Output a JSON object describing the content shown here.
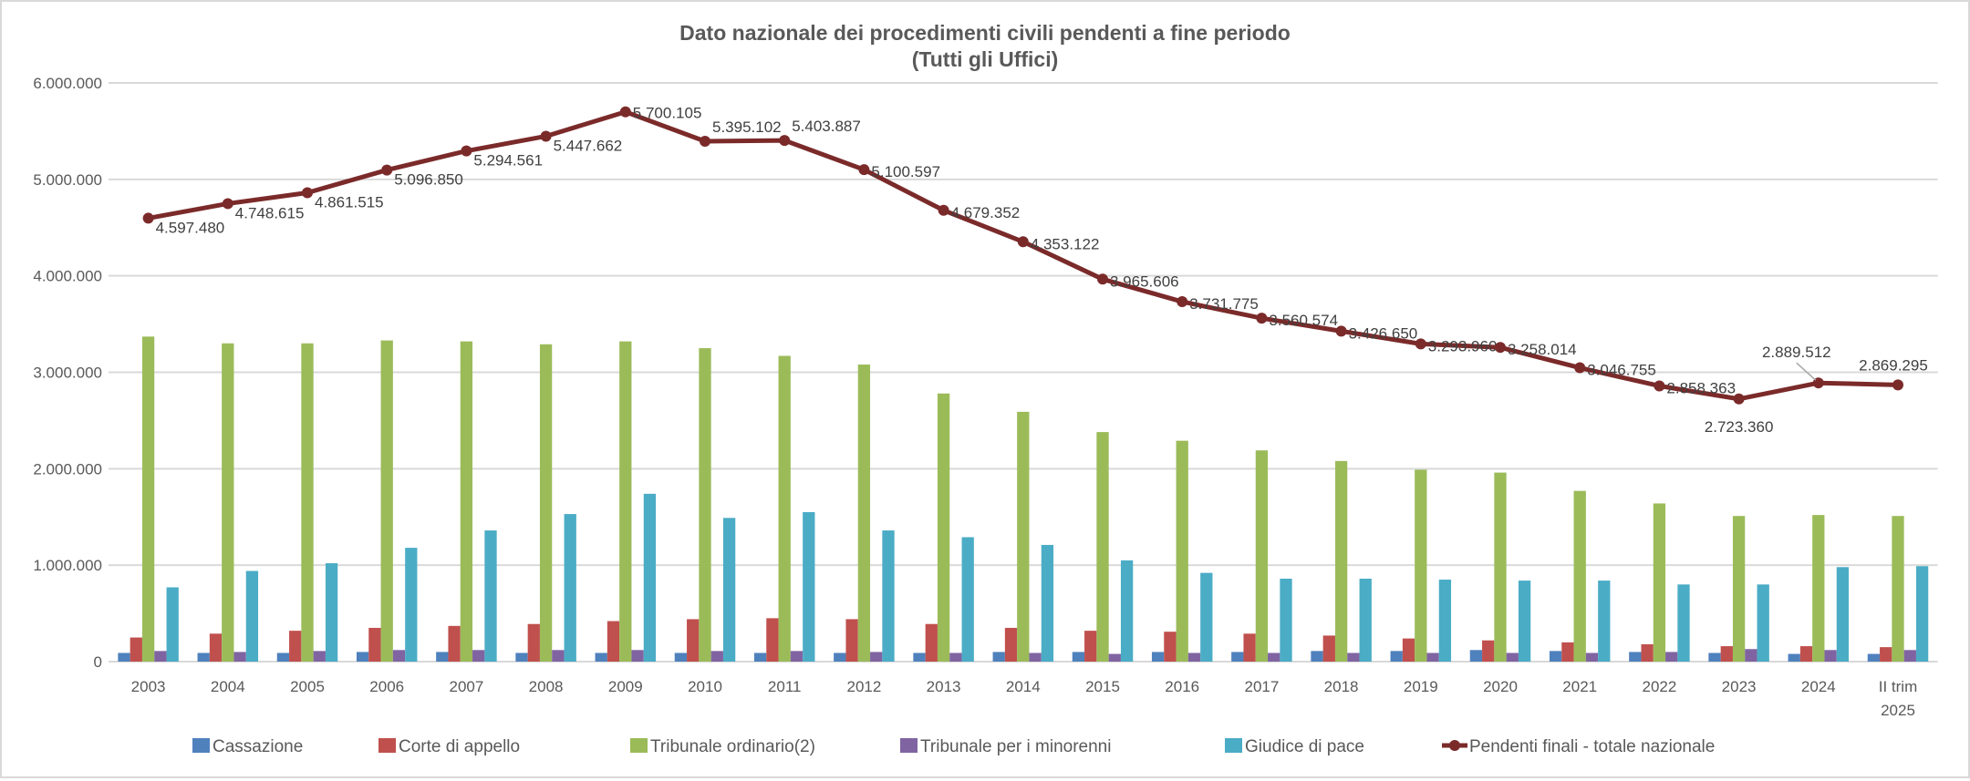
{
  "chart_data": {
    "type": "bar+line",
    "title": "Dato nazionale dei procedimenti civili pendenti a fine periodo",
    "subtitle": "(Tutti gli Uffici)",
    "categories": [
      "2003",
      "2004",
      "2005",
      "2006",
      "2007",
      "2008",
      "2009",
      "2010",
      "2011",
      "2012",
      "2013",
      "2014",
      "2015",
      "2016",
      "2017",
      "2018",
      "2019",
      "2020",
      "2021",
      "2022",
      "2023",
      "2024",
      "II trim\n2025"
    ],
    "ylim": [
      0,
      6000000
    ],
    "yticks": [
      0,
      1000000,
      2000000,
      3000000,
      4000000,
      5000000,
      6000000
    ],
    "ytick_labels": [
      "0",
      "1.000.000",
      "2.000.000",
      "3.000.000",
      "4.000.000",
      "5.000.000",
      "6.000.000"
    ],
    "grid": true,
    "legend_position": "bottom",
    "series": [
      {
        "name": "Cassazione",
        "type": "bar",
        "color": "#4f81bd",
        "values": [
          90000,
          90000,
          90000,
          100000,
          100000,
          90000,
          90000,
          90000,
          90000,
          90000,
          90000,
          100000,
          100000,
          100000,
          100000,
          110000,
          110000,
          120000,
          110000,
          100000,
          90000,
          80000,
          80000
        ]
      },
      {
        "name": "Corte di appello",
        "type": "bar",
        "color": "#c0504d",
        "values": [
          250000,
          290000,
          320000,
          350000,
          370000,
          390000,
          420000,
          440000,
          450000,
          440000,
          390000,
          350000,
          320000,
          310000,
          290000,
          270000,
          240000,
          220000,
          200000,
          180000,
          160000,
          160000,
          150000
        ]
      },
      {
        "name": "Tribunale ordinario(2)",
        "type": "bar",
        "color": "#9bbb59",
        "values": [
          3370000,
          3300000,
          3300000,
          3330000,
          3320000,
          3290000,
          3320000,
          3250000,
          3170000,
          3080000,
          2780000,
          2590000,
          2380000,
          2290000,
          2190000,
          2080000,
          1990000,
          1960000,
          1770000,
          1640000,
          1510000,
          1520000,
          1510000
        ]
      },
      {
        "name": "Tribunale per i minorenni",
        "type": "bar",
        "color": "#8064a2",
        "values": [
          110000,
          100000,
          110000,
          120000,
          120000,
          120000,
          120000,
          110000,
          110000,
          100000,
          90000,
          90000,
          80000,
          90000,
          90000,
          90000,
          90000,
          90000,
          90000,
          100000,
          130000,
          120000,
          120000
        ]
      },
      {
        "name": "Giudice di pace",
        "type": "bar",
        "color": "#4bacc6",
        "values": [
          770000,
          940000,
          1020000,
          1180000,
          1360000,
          1530000,
          1740000,
          1490000,
          1550000,
          1360000,
          1290000,
          1210000,
          1050000,
          920000,
          860000,
          860000,
          850000,
          840000,
          840000,
          800000,
          800000,
          980000,
          990000
        ]
      },
      {
        "name": "Pendenti finali - totale nazionale",
        "type": "line",
        "color": "#7b2a2a",
        "values": [
          4597480,
          4748615,
          4861515,
          5096850,
          5294561,
          5447662,
          5700105,
          5395102,
          5403887,
          5100597,
          4679352,
          4353122,
          3965606,
          3731775,
          3560574,
          3426650,
          3293960,
          3258014,
          3046755,
          2858363,
          2723360,
          2889512,
          2869295
        ],
        "labels": [
          "4.597.480",
          "4.748.615",
          "4.861.515",
          "5.096.850",
          "5.294.561",
          "5.447.662",
          "5.700.105",
          "5.395.102",
          "5.403.887",
          "5.100.597",
          "4.679.352",
          "4.353.122",
          "3.965.606",
          "3.731.775",
          "3.560.574",
          "3.426.650",
          "3.293.960",
          "3.258.014",
          "3.046.755",
          "2.858.363",
          "2.723.360",
          "2.889.512",
          "2.869.295"
        ]
      }
    ]
  }
}
